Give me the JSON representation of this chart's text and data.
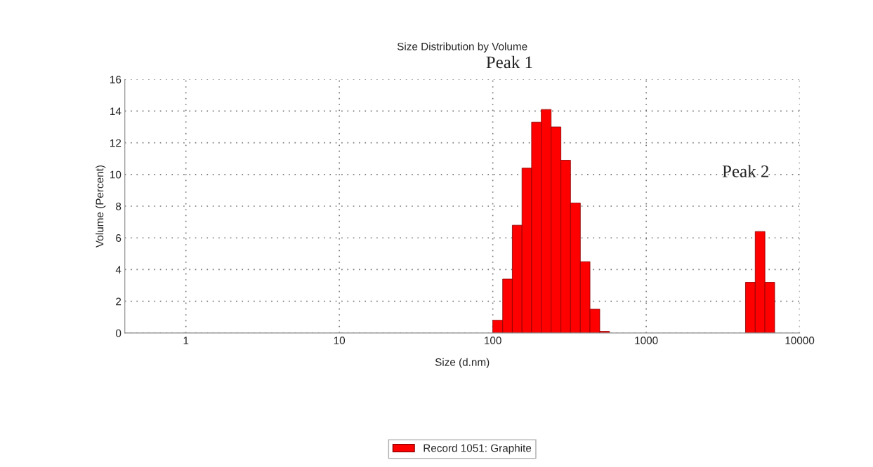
{
  "chart_data": {
    "type": "histogram",
    "title": "Size Distribution by Volume",
    "xlabel": "Size (d.nm)",
    "ylabel": "Volume (Percent)",
    "bins": [
      100,
      116,
      134,
      155,
      179,
      207,
      240,
      278,
      321,
      372,
      430,
      498,
      576,
      666,
      771,
      892,
      1032,
      1194,
      1381,
      1598,
      1849,
      2139,
      2475,
      2864,
      3313,
      3834,
      4436,
      5132,
      5938,
      6870
    ],
    "series": [
      {
        "name": "Record 1051: Graphite",
        "color": "#ff0000",
        "values": [
          0.8,
          3.4,
          6.8,
          10.4,
          13.3,
          14.1,
          13.0,
          10.9,
          8.2,
          4.5,
          1.5,
          0.1,
          0,
          0,
          0,
          0,
          0,
          0,
          0,
          0,
          0,
          0,
          0,
          0,
          0,
          0,
          3.2,
          6.4,
          3.2
        ]
      }
    ],
    "log": "x",
    "xlim": [
      0.4,
      10000
    ],
    "xticks": [
      1,
      10,
      100,
      1000,
      10000
    ],
    "ylim": [
      0,
      16
    ],
    "yticks": [
      0,
      2,
      4,
      6,
      8,
      10,
      12,
      14,
      16
    ],
    "grid": true,
    "legend": "bottom",
    "annotations": [
      "Peak 1",
      "Peak 2"
    ]
  }
}
